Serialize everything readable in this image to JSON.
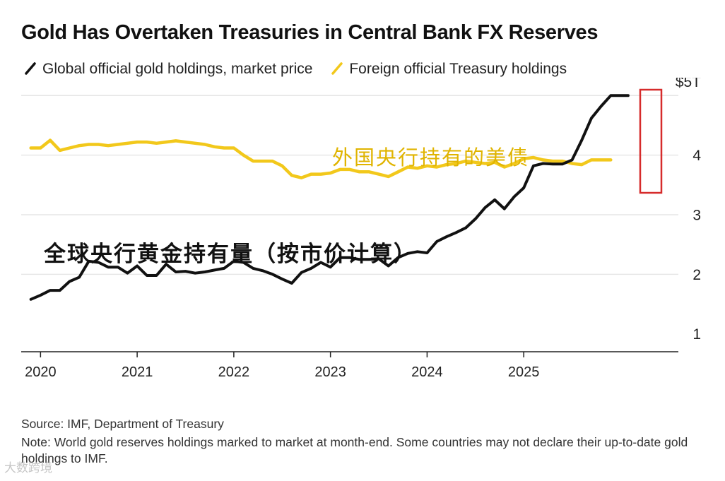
{
  "chart_data": {
    "type": "line",
    "title": "Gold Has Overtaken Treasuries in Central Bank FX Reserves",
    "x_tick_labels": [
      "2020",
      "2021",
      "2022",
      "2023",
      "2024",
      "2025"
    ],
    "y_tick_labels": [
      "1",
      "2",
      "3",
      "4",
      "$5T"
    ],
    "xlim": [
      2019.8,
      2026.6
    ],
    "ylim": [
      0.7,
      5.3
    ],
    "gridlines": true,
    "series": [
      {
        "name": "Global official gold holdings, market price",
        "color": "#111111",
        "x": [
          2019.9,
          2020.0,
          2020.1,
          2020.2,
          2020.3,
          2020.4,
          2020.5,
          2020.6,
          2020.7,
          2020.8,
          2020.9,
          2021.0,
          2021.1,
          2021.2,
          2021.3,
          2021.4,
          2021.5,
          2021.6,
          2021.7,
          2021.8,
          2021.9,
          2022.0,
          2022.1,
          2022.2,
          2022.3,
          2022.4,
          2022.5,
          2022.6,
          2022.7,
          2022.8,
          2022.9,
          2023.0,
          2023.1,
          2023.2,
          2023.3,
          2023.4,
          2023.5,
          2023.6,
          2023.7,
          2023.8,
          2023.9,
          2024.0,
          2024.1,
          2024.2,
          2024.3,
          2024.4,
          2024.5,
          2024.6,
          2024.7,
          2024.8,
          2024.9,
          2025.0,
          2025.1,
          2025.2,
          2025.3,
          2025.4,
          2025.5,
          2025.6,
          2025.7,
          2025.8,
          2025.9,
          2026.0,
          2026.08
        ],
        "y": [
          1.58,
          1.65,
          1.73,
          1.73,
          1.88,
          1.95,
          2.22,
          2.2,
          2.12,
          2.12,
          2.02,
          2.14,
          1.98,
          1.98,
          2.17,
          2.04,
          2.05,
          2.02,
          2.04,
          2.07,
          2.1,
          2.22,
          2.2,
          2.1,
          2.06,
          2.0,
          1.92,
          1.85,
          2.03,
          2.1,
          2.2,
          2.12,
          2.28,
          2.28,
          2.25,
          2.25,
          2.26,
          2.14,
          2.28,
          2.35,
          2.38,
          2.36,
          2.55,
          2.63,
          2.7,
          2.78,
          2.93,
          3.12,
          3.25,
          3.1,
          3.3,
          3.45,
          3.82,
          3.86,
          3.85,
          3.85,
          3.92,
          4.25,
          4.62,
          4.82,
          5.0,
          5.0,
          5.0
        ]
      },
      {
        "name": "Foreign official Treasury holdings",
        "color": "#f2c81b",
        "x": [
          2019.9,
          2020.0,
          2020.1,
          2020.2,
          2020.3,
          2020.4,
          2020.5,
          2020.6,
          2020.7,
          2020.8,
          2020.9,
          2021.0,
          2021.1,
          2021.2,
          2021.3,
          2021.4,
          2021.5,
          2021.6,
          2021.7,
          2021.8,
          2021.9,
          2022.0,
          2022.1,
          2022.2,
          2022.3,
          2022.4,
          2022.5,
          2022.6,
          2022.7,
          2022.8,
          2022.9,
          2023.0,
          2023.1,
          2023.2,
          2023.3,
          2023.4,
          2023.5,
          2023.6,
          2023.7,
          2023.8,
          2023.9,
          2024.0,
          2024.1,
          2024.2,
          2024.3,
          2024.4,
          2024.5,
          2024.6,
          2024.7,
          2024.8,
          2024.9,
          2025.0,
          2025.1,
          2025.2,
          2025.3,
          2025.4,
          2025.5,
          2025.6,
          2025.7,
          2025.8,
          2025.9
        ],
        "y": [
          4.12,
          4.12,
          4.25,
          4.08,
          4.12,
          4.16,
          4.18,
          4.18,
          4.16,
          4.18,
          4.2,
          4.22,
          4.22,
          4.2,
          4.22,
          4.24,
          4.22,
          4.2,
          4.18,
          4.14,
          4.12,
          4.12,
          4.0,
          3.9,
          3.9,
          3.9,
          3.82,
          3.66,
          3.62,
          3.68,
          3.68,
          3.7,
          3.76,
          3.76,
          3.72,
          3.72,
          3.68,
          3.64,
          3.72,
          3.8,
          3.78,
          3.82,
          3.8,
          3.84,
          3.86,
          3.9,
          3.88,
          3.86,
          3.88,
          3.8,
          3.86,
          3.94,
          3.96,
          3.92,
          3.9,
          3.9,
          3.86,
          3.84,
          3.92,
          3.92,
          3.92
        ]
      }
    ]
  },
  "legend": {
    "gold_label": "Global official gold holdings, market price",
    "treasury_label": "Foreign official Treasury holdings"
  },
  "annotations": {
    "gold_cn": "全球央行黄金持有量（按市价计算）",
    "treasury_cn": "外国央行持有的美债"
  },
  "colors": {
    "gold_line": "#111111",
    "treasury_line": "#f2c81b",
    "treasury_text": "#e0b400",
    "highlight_box": "#d62b2b",
    "grid": "#e6e6e6"
  },
  "footer": {
    "source": "Source: IMF, Department of Treasury",
    "note": "Note: World gold reserves holdings marked to market at month-end. Some countries may not declare their up-to-date gold holdings to IMF."
  },
  "watermark": "大数跨境"
}
